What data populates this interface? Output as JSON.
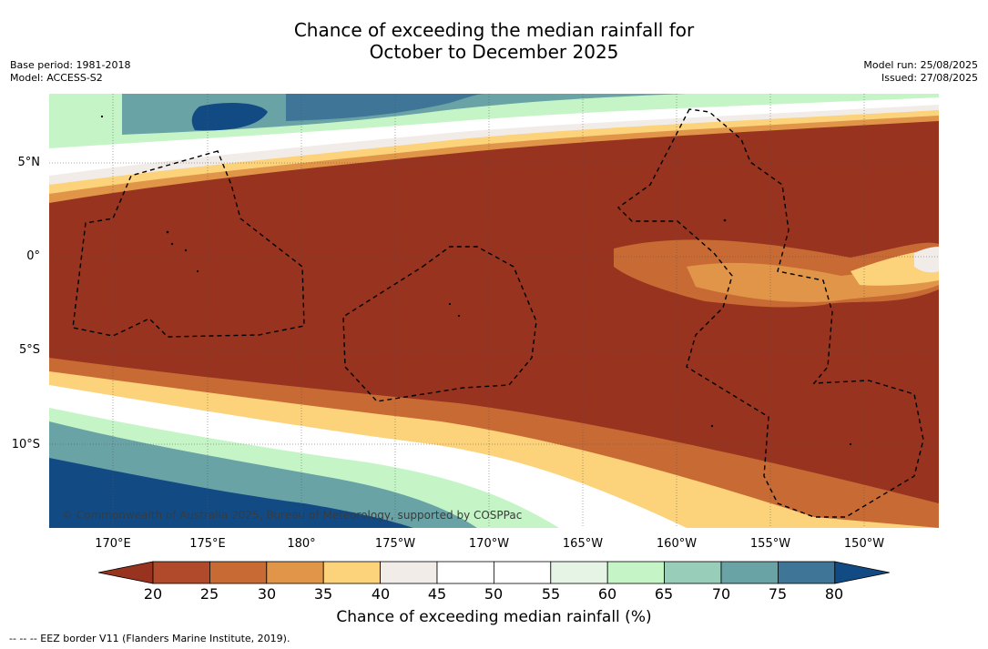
{
  "title_line1": "Chance of exceeding the median rainfall for",
  "title_line2": "October to December 2025",
  "meta": {
    "base_period": "Base period: 1981-2018",
    "model": "Model: ACCESS-S2",
    "model_run": "Model run: 25/08/2025",
    "issued": "Issued: 27/08/2025"
  },
  "copyright": "© Commonwealth of Australia 2025, Bureau of Meteorology, supported by COSPPac",
  "lat_labels": [
    "5°N",
    "0°",
    "5°S",
    "10°S"
  ],
  "lon_labels": [
    "170°E",
    "175°E",
    "180°",
    "175°W",
    "170°W",
    "165°W",
    "160°W",
    "155°W",
    "150°W"
  ],
  "colorbar": {
    "label": "Chance of exceeding median rainfall (%)",
    "ticks": [
      "20",
      "25",
      "30",
      "35",
      "40",
      "45",
      "50",
      "55",
      "60",
      "65",
      "70",
      "75",
      "80"
    ],
    "colors": [
      "#97331f",
      "#b04a2a",
      "#c86a34",
      "#e09548",
      "#fcd27a",
      "#f1ece8",
      "#ffffff",
      "#ffffff",
      "#e6f4e6",
      "#c5f5c7",
      "#97cdb9",
      "#6aa3a6",
      "#3f7698",
      "#124b84"
    ]
  },
  "footer": "-- -- -- EEZ border V11 (Flanders Marine Institute, 2019)."
}
